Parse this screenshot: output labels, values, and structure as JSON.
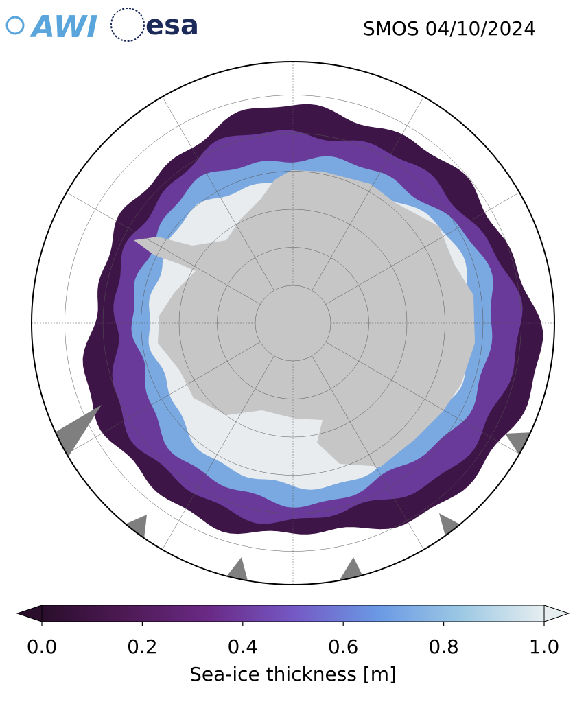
{
  "header": {
    "logo_left": "AWI",
    "logo_right": "esa",
    "title": "SMOS 04/10/2024"
  },
  "colorbar": {
    "label": "Sea-ice thickness [m]",
    "lim": [
      0,
      1
    ],
    "ticks": [
      {
        "value": 0,
        "label": "0.0"
      },
      {
        "value": 0.2,
        "label": "0.2"
      },
      {
        "value": 0.4,
        "label": "0.4"
      },
      {
        "value": 0.6,
        "label": "0.6"
      },
      {
        "value": 0.8,
        "label": "0.8"
      },
      {
        "value": 1,
        "label": "1.0"
      }
    ],
    "colors": [
      "#2a0e2c",
      "#4e1a55",
      "#6a2a86",
      "#7558c4",
      "#6a98e4",
      "#9cc8e4",
      "#e6eef0"
    ]
  }
}
